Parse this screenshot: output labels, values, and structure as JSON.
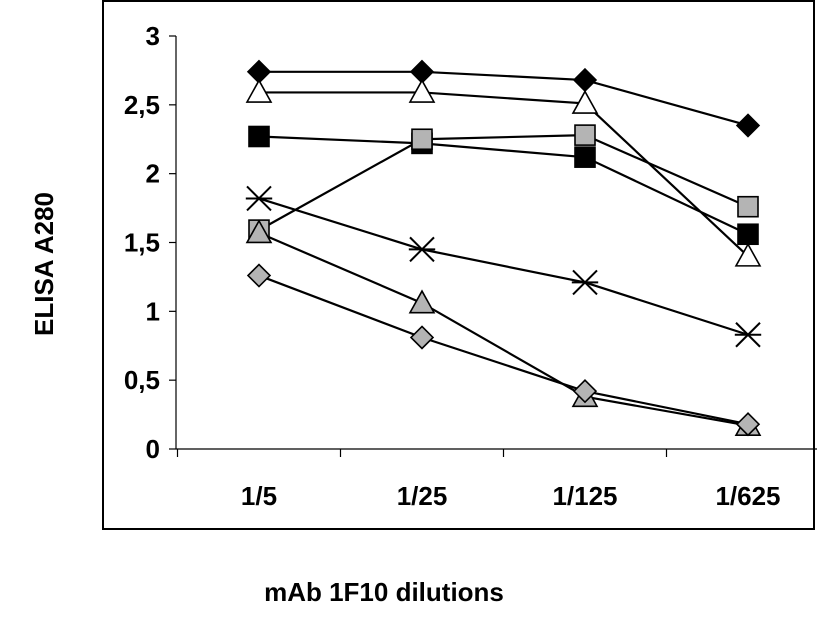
{
  "chart_data": {
    "type": "line",
    "title": "",
    "xlabel": "mAb 1F10 dilutions",
    "ylabel": "ELISA A280",
    "categories": [
      "1/5",
      "1/25",
      "1/125",
      "1/625"
    ],
    "ylim": [
      0,
      3
    ],
    "yticks": [
      0,
      0.5,
      1,
      1.5,
      2,
      2.5,
      3
    ],
    "ytick_labels": [
      "0",
      "0,5",
      "1",
      "1,5",
      "2",
      "2,5",
      "3"
    ],
    "grid": false,
    "legend": "none",
    "series": [
      {
        "marker": "diamond",
        "fill": "#000000",
        "values": [
          2.74,
          2.74,
          2.68,
          2.35
        ]
      },
      {
        "marker": "triangle",
        "fill": "#ffffff",
        "values": [
          2.59,
          2.59,
          2.51,
          1.4
        ]
      },
      {
        "marker": "square",
        "fill": "#000000",
        "values": [
          2.27,
          2.22,
          2.12,
          1.56
        ]
      },
      {
        "marker": "square",
        "fill": "#b4b4b4",
        "values": [
          1.59,
          2.25,
          2.28,
          1.76
        ]
      },
      {
        "marker": "asterisk",
        "fill": "#000000",
        "values": [
          1.82,
          1.45,
          1.21,
          0.83
        ]
      },
      {
        "marker": "triangle",
        "fill": "#b4b4b4",
        "values": [
          1.57,
          1.06,
          0.38,
          0.17
        ]
      },
      {
        "marker": "diamond",
        "fill": "#b4b4b4",
        "values": [
          1.26,
          0.81,
          0.42,
          0.18
        ]
      }
    ]
  }
}
